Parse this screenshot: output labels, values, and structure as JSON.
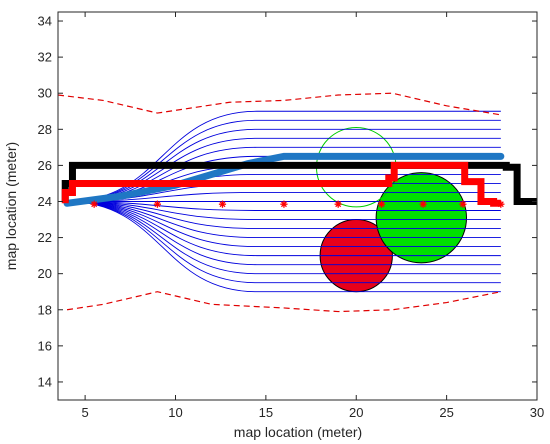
{
  "chart_data": {
    "type": "line",
    "title": "",
    "xlabel": "map location (meter)",
    "ylabel": "map location (meter)",
    "xlim": [
      3.5,
      30
    ],
    "ylim": [
      13,
      34.5
    ],
    "xticks": [
      5,
      10,
      15,
      20,
      25,
      30
    ],
    "yticks": [
      14,
      16,
      18,
      20,
      22,
      24,
      26,
      28,
      30,
      32,
      34
    ],
    "grid": false,
    "legend": "none",
    "colors": {
      "axis": "#262626",
      "candidate_paths": "#0000dd",
      "boundary": "#e00000",
      "optimal_path": "#1f77c4",
      "black_path": "#000000",
      "red_path": "#ff0000",
      "waypoints": "#ff0000",
      "obstacle_red": "#e8001a",
      "obstacle_green": "#00e000",
      "predicted_obstacle": "#00cc00"
    },
    "candidate_paths": {
      "start": [
        4,
        24
      ],
      "transition_end_x": 14.5,
      "end_x": 28,
      "end_y": [
        19,
        19.5,
        20,
        20.5,
        21,
        21.5,
        22,
        22.5,
        23,
        23.5,
        24,
        24.5,
        25,
        25.5,
        26,
        26.5,
        27,
        27.5,
        28,
        28.5,
        29
      ]
    },
    "series": [
      {
        "style": "dashed",
        "role": "upper-boundary",
        "x": [
          3.5,
          6,
          9,
          13,
          16,
          19,
          22,
          25,
          28
        ],
        "y": [
          29.9,
          29.6,
          28.9,
          29.5,
          29.6,
          29.9,
          30.0,
          29.3,
          28.8
        ]
      },
      {
        "style": "dashed",
        "role": "lower-boundary",
        "x": [
          4,
          6,
          9,
          12,
          16,
          19,
          22,
          25,
          28
        ],
        "y": [
          18.0,
          18.3,
          19.0,
          18.3,
          18.1,
          17.9,
          18.0,
          18.4,
          19.0
        ]
      },
      {
        "style": "solid-thick",
        "role": "optimal-path",
        "x": [
          4,
          7,
          10,
          12,
          14,
          16,
          18,
          28
        ],
        "y": [
          23.9,
          24.3,
          24.9,
          25.5,
          26.1,
          26.5,
          26.5,
          26.5
        ]
      },
      {
        "style": "solid-thick",
        "role": "black-path",
        "x": [
          3.9,
          3.9,
          4.3,
          4.3,
          28.3,
          28.3,
          28.9,
          28.9,
          30
        ],
        "y": [
          24.0,
          25.0,
          25.0,
          26.0,
          26.0,
          25.9,
          25.9,
          24.0,
          24.0
        ]
      },
      {
        "style": "solid-thick",
        "role": "red-path",
        "x": [
          3.9,
          3.9,
          4.3,
          4.3,
          21.8,
          21.8,
          22.1,
          22.1,
          26.0,
          26.0,
          26.9,
          26.9,
          27.6,
          27.6,
          28.0
        ],
        "y": [
          23.9,
          24.5,
          24.5,
          25.0,
          25.0,
          25.3,
          25.3,
          26.0,
          26.0,
          25.1,
          25.1,
          24.0,
          24.0,
          23.9,
          23.9
        ]
      }
    ],
    "waypoints": {
      "x": [
        5.5,
        9.0,
        12.6,
        16.0,
        19.0,
        21.4,
        23.7,
        25.9,
        28.0
      ],
      "y": [
        23.85,
        23.85,
        23.85,
        23.85,
        23.85,
        23.85,
        23.85,
        23.85,
        23.85
      ]
    },
    "obstacles": [
      {
        "type": "filled",
        "color": "red",
        "cx": 20.0,
        "cy": 21.0,
        "r": 2.0
      },
      {
        "type": "filled",
        "color": "green",
        "cx": 23.6,
        "cy": 23.1,
        "r": 2.5
      },
      {
        "type": "outline",
        "color": "green",
        "cx": 20.0,
        "cy": 25.9,
        "r": 2.2
      }
    ]
  }
}
